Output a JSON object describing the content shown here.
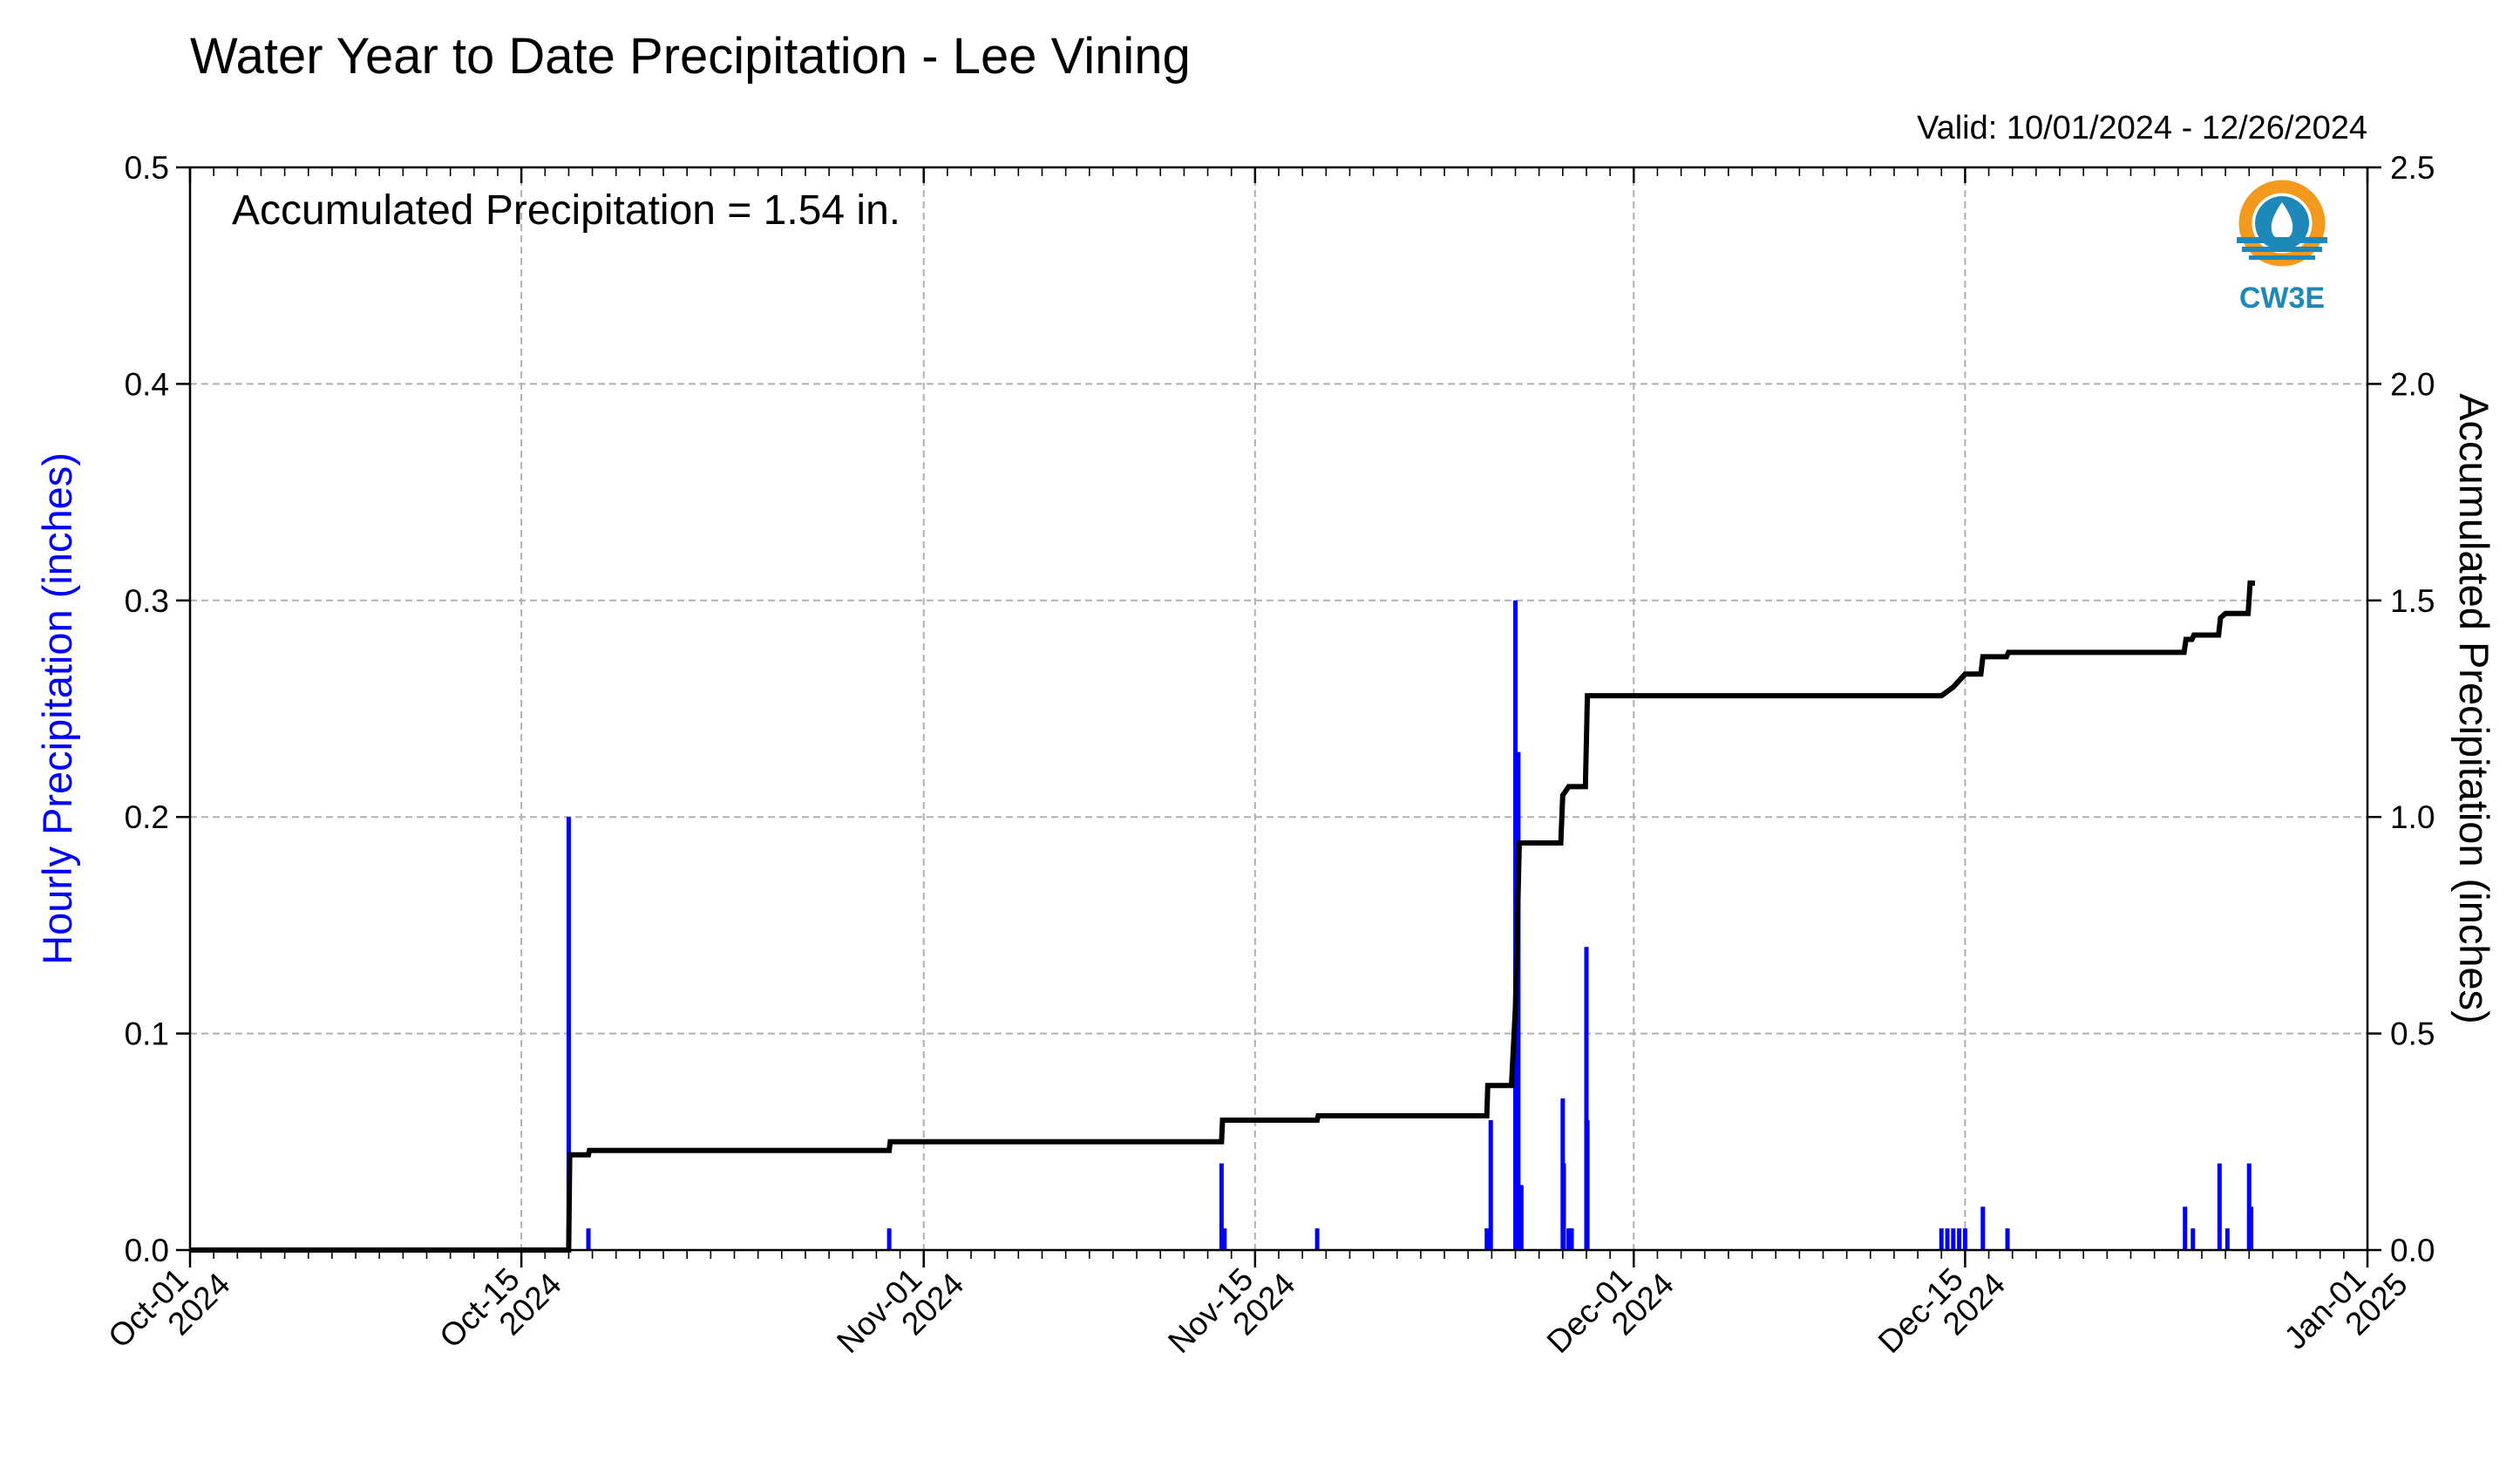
{
  "chart_data": {
    "type": "bar",
    "title": "Water Year to Date Precipitation - Lee Vining",
    "valid_range": "Valid: 10/01/2024 - 12/26/2024",
    "annotation": "Accumulated Precipitation = 1.54 in.",
    "logo_text": "CW3E",
    "y_left_label": "Hourly Precipitation (inches)",
    "y_right_label": "Accumulated Precipitation (inches)",
    "y_left_lim": [
      0,
      0.5
    ],
    "y_right_lim": [
      0,
      2.5
    ],
    "y_left_ticks": [
      "0.0",
      "0.1",
      "0.2",
      "0.3",
      "0.4",
      "0.5"
    ],
    "y_right_ticks": [
      "0.0",
      "0.5",
      "1.0",
      "1.5",
      "2.0",
      "2.5"
    ],
    "x_range": [
      "2024-10-01",
      "2025-01-01"
    ],
    "x_ticks": [
      {
        "date": "2024-10-01",
        "label": "Oct-01",
        "year": "2024"
      },
      {
        "date": "2024-10-15",
        "label": "Oct-15",
        "year": "2024"
      },
      {
        "date": "2024-11-01",
        "label": "Nov-01",
        "year": "2024"
      },
      {
        "date": "2024-11-15",
        "label": "Nov-15",
        "year": "2024"
      },
      {
        "date": "2024-12-01",
        "label": "Dec-01",
        "year": "2024"
      },
      {
        "date": "2024-12-15",
        "label": "Dec-15",
        "year": "2024"
      },
      {
        "date": "2025-01-01",
        "label": "Jan-01",
        "year": "2025"
      }
    ],
    "grid": true,
    "colors": {
      "hourly": "#0000ff",
      "accumulated": "#000000",
      "grid": "#b0b0b0"
    },
    "series": [
      {
        "kind": "bar",
        "axis": "left",
        "points": [
          [
            "2024-10-17T00:00",
            0.2
          ],
          [
            "2024-10-17T20:00",
            0.01
          ],
          [
            "2024-10-30T13:00",
            0.01
          ],
          [
            "2024-11-13T14:00",
            0.04
          ],
          [
            "2024-11-13T17:00",
            0.01
          ],
          [
            "2024-11-17T15:00",
            0.01
          ],
          [
            "2024-11-24T19:00",
            0.01
          ],
          [
            "2024-11-24T23:00",
            0.06
          ],
          [
            "2024-11-26T00:00",
            0.3
          ],
          [
            "2024-11-26T03:00",
            0.23
          ],
          [
            "2024-11-26T06:00",
            0.03
          ],
          [
            "2024-11-28T00:00",
            0.07
          ],
          [
            "2024-11-28T01:00",
            0.04
          ],
          [
            "2024-11-28T06:00",
            0.01
          ],
          [
            "2024-11-28T09:00",
            0.01
          ],
          [
            "2024-11-29T00:00",
            0.14
          ],
          [
            "2024-11-29T01:00",
            0.06
          ],
          [
            "2024-12-14T00:00",
            0.01
          ],
          [
            "2024-12-14T06:00",
            0.01
          ],
          [
            "2024-12-14T12:00",
            0.01
          ],
          [
            "2024-12-14T18:00",
            0.01
          ],
          [
            "2024-12-15T00:00",
            0.01
          ],
          [
            "2024-12-15T18:00",
            0.02
          ],
          [
            "2024-12-16T19:00",
            0.01
          ],
          [
            "2024-12-24T07:00",
            0.02
          ],
          [
            "2024-12-24T15:00",
            0.01
          ],
          [
            "2024-12-25T18:00",
            0.04
          ],
          [
            "2024-12-26T02:00",
            0.01
          ],
          [
            "2024-12-27T00:00",
            0.04
          ],
          [
            "2024-12-27T02:00",
            0.02
          ]
        ]
      },
      {
        "kind": "step-line",
        "axis": "right",
        "points": [
          [
            "2024-10-01T00:00",
            0.0
          ],
          [
            "2024-10-17T00:00",
            0.0
          ],
          [
            "2024-10-17T01:00",
            0.22
          ],
          [
            "2024-10-17T20:00",
            0.22
          ],
          [
            "2024-10-17T21:00",
            0.23
          ],
          [
            "2024-10-30T13:00",
            0.23
          ],
          [
            "2024-10-30T14:00",
            0.25
          ],
          [
            "2024-11-13T14:00",
            0.25
          ],
          [
            "2024-11-13T15:00",
            0.3
          ],
          [
            "2024-11-17T15:00",
            0.3
          ],
          [
            "2024-11-17T16:00",
            0.31
          ],
          [
            "2024-11-24T19:00",
            0.31
          ],
          [
            "2024-11-24T20:00",
            0.38
          ],
          [
            "2024-11-25T20:00",
            0.38
          ],
          [
            "2024-11-26T00:00",
            0.56
          ],
          [
            "2024-11-26T04:00",
            0.94
          ],
          [
            "2024-11-27T22:00",
            0.94
          ],
          [
            "2024-11-28T00:00",
            1.05
          ],
          [
            "2024-11-28T06:00",
            1.07
          ],
          [
            "2024-11-28T23:00",
            1.07
          ],
          [
            "2024-11-29T01:00",
            1.28
          ],
          [
            "2024-12-14T00:00",
            1.28
          ],
          [
            "2024-12-14T12:00",
            1.3
          ],
          [
            "2024-12-15T00:00",
            1.33
          ],
          [
            "2024-12-15T16:00",
            1.33
          ],
          [
            "2024-12-15T18:00",
            1.37
          ],
          [
            "2024-12-16T18:00",
            1.37
          ],
          [
            "2024-12-16T20:00",
            1.38
          ],
          [
            "2024-12-24T06:00",
            1.38
          ],
          [
            "2024-12-24T08:00",
            1.41
          ],
          [
            "2024-12-24T14:00",
            1.41
          ],
          [
            "2024-12-24T16:00",
            1.42
          ],
          [
            "2024-12-25T17:00",
            1.42
          ],
          [
            "2024-12-25T19:00",
            1.46
          ],
          [
            "2024-12-26T00:00",
            1.47
          ],
          [
            "2024-12-26T23:00",
            1.47
          ],
          [
            "2024-12-27T01:00",
            1.54
          ],
          [
            "2024-12-27T06:00",
            1.54
          ]
        ]
      }
    ]
  }
}
